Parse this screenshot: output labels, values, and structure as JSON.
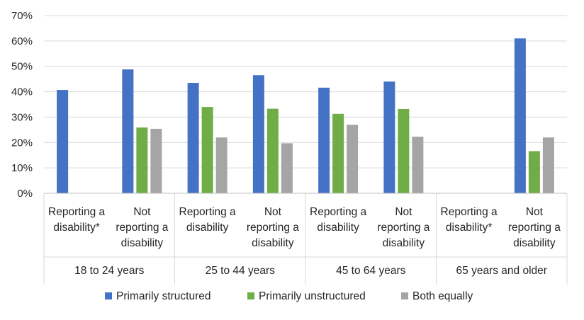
{
  "chart_data": {
    "type": "bar",
    "title": "",
    "xlabel": "",
    "ylabel": "",
    "ylim": [
      0,
      70
    ],
    "y_ticks": [
      "0%",
      "10%",
      "20%",
      "30%",
      "40%",
      "50%",
      "60%",
      "70%"
    ],
    "grid": true,
    "legend_position": "bottom",
    "groups": [
      {
        "label": "18 to 24 years",
        "categories": [
          [
            "Reporting a",
            "disability*"
          ],
          [
            "Not",
            "reporting a",
            "disability"
          ]
        ]
      },
      {
        "label": "25 to 44 years",
        "categories": [
          [
            "Reporting a",
            "disability"
          ],
          [
            "Not",
            "reporting a",
            "disability"
          ]
        ]
      },
      {
        "label": "45 to 64 years",
        "categories": [
          [
            "Reporting a",
            "disability"
          ],
          [
            "Not",
            "reporting a",
            "disability"
          ]
        ]
      },
      {
        "label": "65 years and older",
        "categories": [
          [
            "Reporting a",
            "disability*"
          ],
          [
            "Not",
            "reporting a",
            "disability"
          ]
        ]
      }
    ],
    "series": [
      {
        "name": "Primarily structured",
        "color": "#4472C4",
        "values": [
          40.7,
          48.8,
          43.5,
          46.5,
          41.6,
          44.0,
          null,
          61.0
        ]
      },
      {
        "name": "Primarily unstructured",
        "color": "#70AD47",
        "values": [
          null,
          25.9,
          34.0,
          33.3,
          31.3,
          33.2,
          null,
          16.6
        ]
      },
      {
        "name": "Both equally",
        "color": "#A5A5A5",
        "values": [
          null,
          25.4,
          22.0,
          19.7,
          27.0,
          22.3,
          null,
          22.0
        ]
      }
    ]
  }
}
